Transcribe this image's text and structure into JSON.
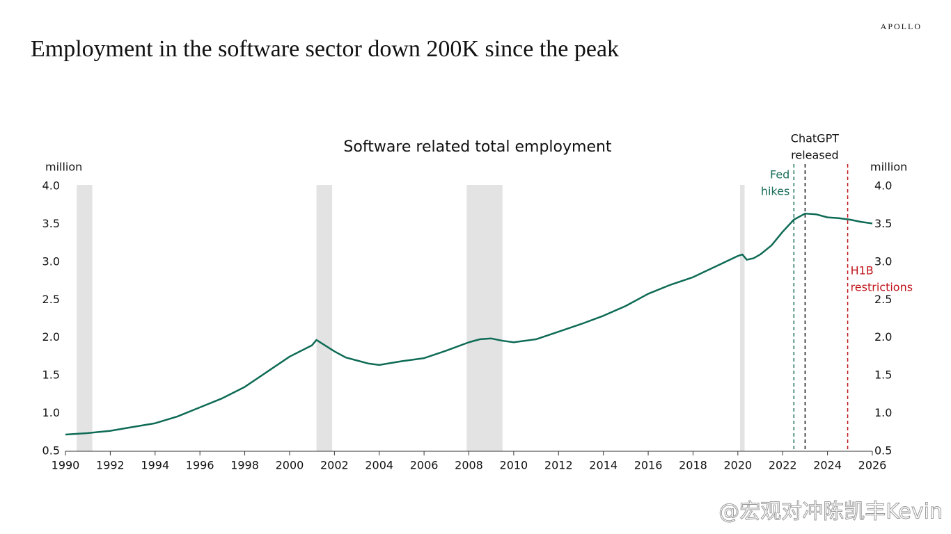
{
  "brand": "APOLLO",
  "headline": "Employment in the software sector down 200K since the peak",
  "watermark": "@宏观对冲陈凯丰Kevin",
  "chart_data": {
    "type": "line",
    "title": "Software related total employment",
    "y_label": "million",
    "y2_label": "million",
    "x": [
      1990,
      1991,
      1992,
      1993,
      1994,
      1995,
      1996,
      1997,
      1998,
      1999,
      2000,
      2001,
      2001.2,
      2002,
      2002.5,
      2003,
      2003.5,
      2004,
      2005,
      2006,
      2007,
      2008,
      2008.5,
      2009,
      2009.5,
      2010,
      2011,
      2012,
      2013,
      2014,
      2015,
      2016,
      2017,
      2018,
      2019,
      2020,
      2020.2,
      2020.4,
      2020.7,
      2021,
      2021.5,
      2022,
      2022.5,
      2023,
      2023.5,
      2024,
      2024.5,
      2025,
      2025.5,
      2026
    ],
    "series": [
      {
        "name": "Software related total employment",
        "color": "#0e6b55",
        "values": [
          0.72,
          0.74,
          0.77,
          0.82,
          0.87,
          0.96,
          1.08,
          1.2,
          1.35,
          1.55,
          1.75,
          1.9,
          1.97,
          1.82,
          1.74,
          1.7,
          1.66,
          1.64,
          1.69,
          1.73,
          1.83,
          1.94,
          1.98,
          1.99,
          1.96,
          1.94,
          1.98,
          2.08,
          2.18,
          2.29,
          2.42,
          2.58,
          2.7,
          2.8,
          2.94,
          3.08,
          3.1,
          3.03,
          3.05,
          3.1,
          3.22,
          3.4,
          3.56,
          3.64,
          3.63,
          3.59,
          3.58,
          3.56,
          3.53,
          3.51
        ]
      }
    ],
    "xlim": [
      1990,
      2026
    ],
    "xticks": [
      1990,
      1992,
      1994,
      1996,
      1998,
      2000,
      2002,
      2004,
      2006,
      2008,
      2010,
      2012,
      2014,
      2016,
      2018,
      2020,
      2022,
      2024,
      2026
    ],
    "ylim": [
      0.5,
      4
    ],
    "yticks": [
      0.5,
      {
        "value": 1,
        "label": "1.0"
      },
      1.5,
      {
        "value": 2,
        "label": "2.0"
      },
      2.5,
      {
        "value": 3,
        "label": "3.0"
      },
      3.5,
      {
        "value": 4,
        "label": "4.0"
      }
    ],
    "y2lim": [
      0.5,
      4
    ],
    "y2ticks": [
      0.5,
      {
        "value": 1,
        "label": "1.0"
      },
      1.5,
      {
        "value": 2,
        "label": "2.0"
      },
      2.5,
      {
        "value": 3,
        "label": "3.0"
      },
      3.5,
      {
        "value": 4,
        "label": "4.0"
      }
    ],
    "shaded_periods": [
      {
        "start": 1990.5,
        "end": 1991.2
      },
      {
        "start": 2001.2,
        "end": 2001.9
      },
      {
        "start": 2007.9,
        "end": 2009.5
      },
      {
        "start": 2020.1,
        "end": 2020.3
      }
    ],
    "shade_color": "#e3e3e3",
    "events": [
      {
        "x": 2022.5,
        "label_lines": [
          "Fed",
          "hikes"
        ],
        "color": "#1a6e5a"
      },
      {
        "x": 2023.0,
        "label_lines": [
          "ChatGPT",
          "released"
        ],
        "color": "#111111"
      },
      {
        "x": 2024.9,
        "label_lines": [
          "H1B",
          "restrictions"
        ],
        "color": "#c0161c"
      }
    ],
    "grid": false
  }
}
